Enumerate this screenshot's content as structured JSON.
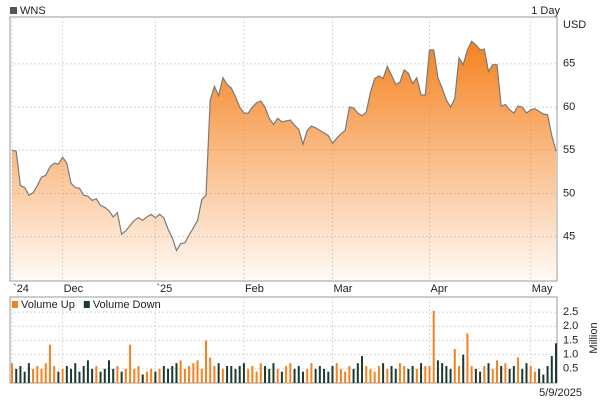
{
  "chart_data": [
    {
      "type": "area",
      "legend": "WNS",
      "period": "1 Day",
      "y_axis_unit": "USD",
      "color": "#f5821f",
      "line_color": "#7a7a7a",
      "values": [
        55.0,
        54.9,
        50.9,
        50.7,
        49.8,
        50.1,
        50.9,
        51.9,
        52.1,
        53.1,
        53.5,
        53.4,
        54.2,
        53.5,
        51.2,
        50.7,
        50.6,
        49.8,
        49.7,
        49.2,
        49.4,
        48.6,
        48.4,
        48.0,
        47.3,
        47.8,
        45.3,
        45.7,
        46.3,
        46.9,
        47.2,
        46.9,
        47.3,
        47.6,
        47.2,
        47.6,
        47.2,
        45.9,
        44.9,
        43.4,
        44.2,
        44.3,
        45.2,
        46.0,
        46.9,
        49.3,
        49.8,
        60.8,
        62.4,
        61.3,
        63.4,
        62.6,
        62.2,
        61.2,
        60.0,
        59.3,
        59.3,
        60.0,
        60.5,
        60.7,
        60.0,
        58.7,
        58.0,
        58.7,
        58.3,
        58.4,
        58.5,
        57.9,
        57.4,
        55.7,
        57.3,
        57.8,
        57.6,
        57.3,
        57.0,
        56.7,
        55.8,
        56.4,
        56.9,
        57.3,
        60.0,
        59.9,
        59.3,
        59.0,
        59.4,
        61.7,
        63.3,
        63.6,
        63.3,
        64.7,
        63.7,
        62.6,
        62.9,
        64.3,
        63.9,
        62.7,
        63.4,
        61.4,
        61.4,
        66.6,
        66.6,
        63.4,
        62.2,
        60.8,
        60.0,
        61.0,
        65.7,
        64.9,
        66.6,
        67.6,
        67.2,
        66.6,
        66.7,
        64.1,
        64.9,
        64.9,
        60.1,
        60.3,
        59.7,
        59.3,
        60.1,
        60.0,
        59.3,
        59.7,
        59.8,
        59.5,
        59.2,
        59.1,
        56.7,
        54.9
      ],
      "ylim": [
        40,
        70.3
      ],
      "yticks": [
        45,
        50,
        55,
        60,
        65
      ],
      "xticks": [
        {
          "value": 0,
          "label": "`24"
        },
        {
          "value": 12,
          "label": "Dec"
        },
        {
          "value": 34,
          "label": "`25"
        },
        {
          "value": 55,
          "label": "Feb"
        },
        {
          "value": 76,
          "label": "Mar"
        },
        {
          "value": 99,
          "label": "Apr"
        },
        {
          "value": 123,
          "label": "May"
        }
      ],
      "grid": true
    },
    {
      "type": "bar",
      "legend": [
        "Volume Up",
        "Volume Down"
      ],
      "colors": [
        "#f5821f",
        "#1c3b2e"
      ],
      "values": [
        0.7,
        0.5,
        0.6,
        0.4,
        0.7,
        0.5,
        0.6,
        0.5,
        0.7,
        1.35,
        0.6,
        0.4,
        0.5,
        0.6,
        0.5,
        0.7,
        0.4,
        0.6,
        0.8,
        0.5,
        0.6,
        0.4,
        0.5,
        0.8,
        0.5,
        0.6,
        0.4,
        0.5,
        1.35,
        0.5,
        0.6,
        0.3,
        0.4,
        0.5,
        0.4,
        0.5,
        0.6,
        0.5,
        0.6,
        0.7,
        0.8,
        0.5,
        0.6,
        0.7,
        0.8,
        0.5,
        1.5,
        0.9,
        0.6,
        0.7,
        0.5,
        0.6,
        0.6,
        0.5,
        0.6,
        0.7,
        0.5,
        0.6,
        0.4,
        0.7,
        0.6,
        0.5,
        0.7,
        0.5,
        0.4,
        0.6,
        0.7,
        0.5,
        0.6,
        0.4,
        0.5,
        0.7,
        0.5,
        0.6,
        0.5,
        0.4,
        0.6,
        0.7,
        0.5,
        0.4,
        0.6,
        0.5,
        0.7,
        0.95,
        0.6,
        0.5,
        0.4,
        0.6,
        0.7,
        0.5,
        0.6,
        0.5,
        0.7,
        0.6,
        0.5,
        0.6,
        0.5,
        0.7,
        0.6,
        0.6,
        2.55,
        0.8,
        0.7,
        0.6,
        0.5,
        1.2,
        0.6,
        1.0,
        1.75,
        0.6,
        0.5,
        0.4,
        0.6,
        0.7,
        0.5,
        0.8,
        0.6,
        0.7,
        0.5,
        0.6,
        0.9,
        0.5,
        0.7,
        0.6,
        0.4,
        0.5,
        0.3,
        0.6,
        0.95,
        1.4
      ],
      "ylim": [
        0,
        3
      ],
      "yticks": [
        0.5,
        {
          "value": 1,
          "label": "1.0"
        },
        1.5,
        {
          "value": 2,
          "label": "2.0"
        },
        2.5
      ],
      "y_label": "Million",
      "date": "5/9/2025",
      "grid": true
    }
  ]
}
